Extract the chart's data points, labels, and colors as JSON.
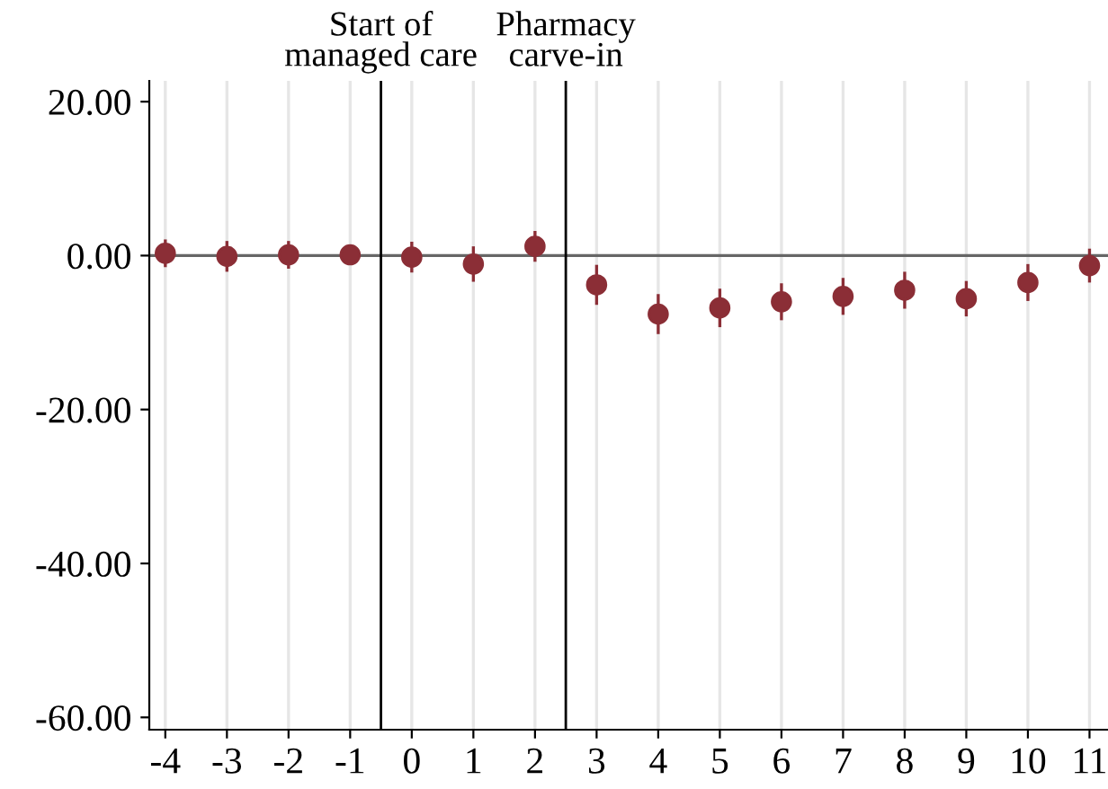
{
  "chart_data": {
    "type": "scatter",
    "x": [
      -4,
      -3,
      -2,
      -1,
      0,
      1,
      2,
      3,
      4,
      5,
      6,
      7,
      8,
      9,
      10,
      11
    ],
    "series": [
      {
        "color": "#8b2e36",
        "values": [
          0.3,
          -0.1,
          0.1,
          0.1,
          -0.2,
          -1.1,
          1.2,
          -3.8,
          -7.6,
          -6.8,
          -6.0,
          -5.3,
          -4.5,
          -5.6,
          -3.5,
          -1.3
        ],
        "errors": [
          1.8,
          2.0,
          1.8,
          1.0,
          2.0,
          2.3,
          2.0,
          2.6,
          2.6,
          2.5,
          2.4,
          2.4,
          2.4,
          2.3,
          2.4,
          2.2
        ]
      }
    ],
    "xlim": [
      -4.26,
      11.3
    ],
    "xticks": [
      -4,
      -3,
      -2,
      -1,
      0,
      1,
      2,
      3,
      4,
      5,
      6,
      7,
      8,
      9,
      10,
      11
    ],
    "ylim": [
      -61.6,
      22.7
    ],
    "yticks": [
      {
        "value": 20,
        "label": "20.00"
      },
      {
        "value": 0,
        "label": "0.00"
      },
      {
        "value": -20,
        "label": "-20.00"
      },
      {
        "value": -40,
        "label": "-40.00"
      },
      {
        "value": -60,
        "label": "-60.00"
      }
    ],
    "ref_lines": [
      {
        "axis": "y",
        "value": 0,
        "color": "#666666"
      },
      {
        "axis": "x",
        "value": -0.5,
        "label": "Start of\nmanaged care",
        "color": "#000000"
      },
      {
        "axis": "x",
        "value": 2.5,
        "label": "Pharmacy\ncarve-in",
        "color": "#000000"
      }
    ],
    "grid": "x",
    "marker": "circle"
  }
}
